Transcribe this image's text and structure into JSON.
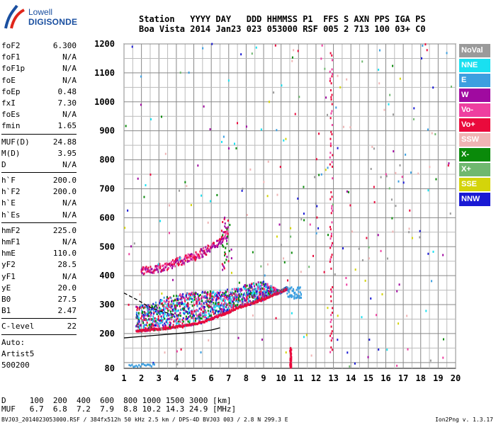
{
  "logo": {
    "line1": "Lowell",
    "line2": "DIGISONDE"
  },
  "header": {
    "line1": "Station   YYYY DAY   DDD HHMMSS P1  FFS S AXN PPS IGA PS",
    "line2": "Boa Vista 2014 Jan23 023 053000 RSF 005 2 713 100 03+ C0"
  },
  "params": {
    "group1": [
      {
        "name": "foF2",
        "value": "6.300"
      },
      {
        "name": "foF1",
        "value": "N/A"
      },
      {
        "name": "foF1p",
        "value": "N/A"
      },
      {
        "name": "foE",
        "value": "N/A"
      },
      {
        "name": "foEp",
        "value": "0.48"
      },
      {
        "name": "fxI",
        "value": "7.30"
      },
      {
        "name": "foEs",
        "value": "N/A"
      },
      {
        "name": "fmin",
        "value": "1.65"
      }
    ],
    "group2": [
      {
        "name": "MUF(D)",
        "value": "24.88"
      },
      {
        "name": "M(D)",
        "value": "3.95"
      },
      {
        "name": "D",
        "value": "N/A"
      }
    ],
    "group3": [
      {
        "name": "h`F",
        "value": "200.0"
      },
      {
        "name": "h`F2",
        "value": "200.0"
      },
      {
        "name": "h`E",
        "value": "N/A"
      },
      {
        "name": "h`Es",
        "value": "N/A"
      }
    ],
    "group4": [
      {
        "name": "hmF2",
        "value": "225.0"
      },
      {
        "name": "hmF1",
        "value": "N/A"
      },
      {
        "name": "hmE",
        "value": "110.0"
      },
      {
        "name": "yF2",
        "value": "28.5"
      },
      {
        "name": "yF1",
        "value": "N/A"
      },
      {
        "name": "yE",
        "value": "20.0"
      },
      {
        "name": "B0",
        "value": "27.5"
      },
      {
        "name": "B1",
        "value": "2.47"
      }
    ],
    "group5": [
      {
        "name": "C-level",
        "value": "22"
      }
    ]
  },
  "auto": {
    "line1": "Auto:",
    "line2": "Artist5",
    "line3": "500200"
  },
  "legend": [
    {
      "label": "NoVal",
      "color": "#9a9a9a"
    },
    {
      "label": "NNE",
      "color": "#19e0f0"
    },
    {
      "label": "E",
      "color": "#3c9fe0"
    },
    {
      "label": "W",
      "color": "#a00aa0"
    },
    {
      "label": "Vo-",
      "color": "#ee3fa0"
    },
    {
      "label": "Vo+",
      "color": "#ea0a3c"
    },
    {
      "label": "SSW",
      "color": "#f0b4b4"
    },
    {
      "label": "X-",
      "color": "#0a8a0a"
    },
    {
      "label": "X+",
      "color": "#6fb86f"
    },
    {
      "label": "SSE",
      "color": "#d4d40a"
    },
    {
      "label": "NNW",
      "color": "#1a1ad4"
    }
  ],
  "chart_data": {
    "type": "scatter",
    "xlabel": "",
    "ylabel": "",
    "xlim": [
      1,
      20
    ],
    "ylim": [
      80,
      1200
    ],
    "x_ticks": [
      1,
      2,
      3,
      4,
      5,
      6,
      7,
      8,
      9,
      10,
      11,
      12,
      13,
      14,
      15,
      16,
      17,
      18,
      19,
      20
    ],
    "y_ticks": [
      80,
      200,
      300,
      400,
      500,
      600,
      700,
      800,
      900,
      1000,
      1100,
      1200
    ],
    "grid": true,
    "traces": [
      {
        "name": "F2 trace (dense)",
        "points": [
          [
            1.7,
            205
          ],
          [
            2.5,
            210
          ],
          [
            3.5,
            215
          ],
          [
            4.5,
            225
          ],
          [
            5.5,
            235
          ],
          [
            6.3,
            255
          ],
          [
            7,
            270
          ],
          [
            7.5,
            285
          ],
          [
            8,
            295
          ],
          [
            8.5,
            305
          ],
          [
            9,
            315
          ],
          [
            9.5,
            330
          ],
          [
            10,
            340
          ],
          [
            10.3,
            350
          ]
        ]
      },
      {
        "name": "F2 upper spread",
        "points": [
          [
            2.5,
            300
          ],
          [
            3.5,
            330
          ],
          [
            4.5,
            340
          ],
          [
            5.5,
            345
          ],
          [
            6.5,
            350
          ],
          [
            7.5,
            355
          ],
          [
            8,
            370
          ],
          [
            9,
            380
          ],
          [
            10,
            345
          ],
          [
            11,
            335
          ]
        ]
      },
      {
        "name": "second hop",
        "points": [
          [
            2,
            410
          ],
          [
            3,
            420
          ],
          [
            4,
            440
          ],
          [
            5,
            460
          ],
          [
            6,
            490
          ],
          [
            6.6,
            520
          ],
          [
            7,
            550
          ]
        ]
      },
      {
        "name": "model curve solid",
        "points": [
          [
            1,
            185
          ],
          [
            2,
            190
          ],
          [
            3,
            195
          ],
          [
            4,
            200
          ],
          [
            5,
            205
          ],
          [
            6,
            212
          ],
          [
            6.5,
            220
          ]
        ]
      },
      {
        "name": "model curve dashed",
        "points": [
          [
            1,
            340
          ],
          [
            1.8,
            315
          ],
          [
            2.5,
            290
          ],
          [
            3.2,
            275
          ],
          [
            4,
            265
          ]
        ]
      }
    ]
  },
  "bottom": {
    "line1": "D     100  200  400  600  800 1000 1500 3000 [km]",
    "line2": "MUF   6.7  6.8  7.2  7.9  8.8 10.2 14.3 24.9 [MHz]"
  },
  "footer": "BVJ03_2014023053000.RSF / 384fx512h 50 kHz 2.5 km / DPS-4D BVJ03 003 / 2.8 N 299.3 E",
  "version": "Ion2Png v. 1.3.17"
}
